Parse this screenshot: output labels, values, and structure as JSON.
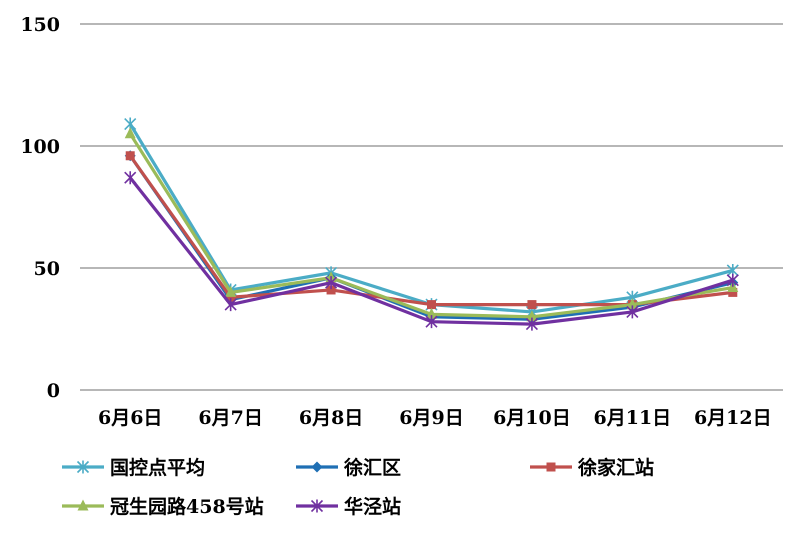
{
  "chart_data": {
    "type": "line",
    "title": "",
    "xlabel": "",
    "ylabel": "",
    "ylim": [
      0,
      150
    ],
    "yticks": [
      0,
      50,
      100,
      150
    ],
    "grid": true,
    "legend_position": "bottom",
    "categories": [
      "6月6日",
      "6月7日",
      "6月8日",
      "6月9日",
      "6月10日",
      "6月11日",
      "6月12日"
    ],
    "series": [
      {
        "name": "国控点平均",
        "color": "#4bacc6",
        "marker": "asterisk",
        "values": [
          109,
          41,
          48,
          35,
          32,
          38,
          49
        ]
      },
      {
        "name": "徐汇区",
        "color": "#1f6fb4",
        "marker": "diamond",
        "values": [
          96,
          37,
          46,
          30,
          29,
          34,
          44
        ]
      },
      {
        "name": "徐家汇站",
        "color": "#c0504d",
        "marker": "square",
        "values": [
          96,
          38,
          41,
          35,
          35,
          35,
          40
        ]
      },
      {
        "name": "冠生园路458号站",
        "color": "#9bbb59",
        "marker": "triangle",
        "values": [
          105,
          40,
          46,
          31,
          30,
          35,
          42
        ]
      },
      {
        "name": "华泾站",
        "color": "#7030a0",
        "marker": "asterisk",
        "values": [
          87,
          35,
          44,
          28,
          27,
          32,
          45
        ]
      }
    ]
  }
}
